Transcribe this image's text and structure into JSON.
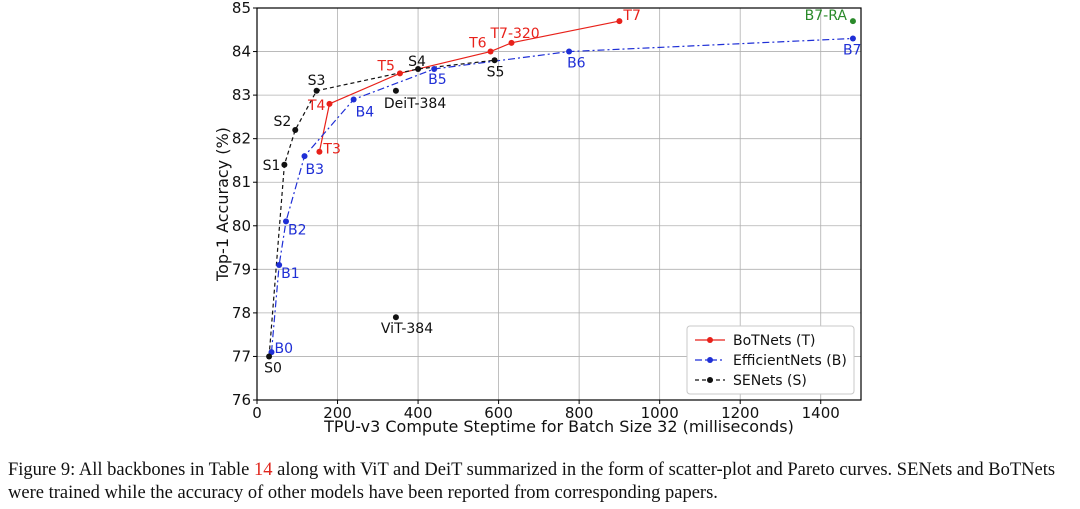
{
  "chart_data": {
    "type": "scatter",
    "title": "",
    "xlabel": "TPU-v3 Compute Steptime for Batch Size 32 (milliseconds)",
    "ylabel": "Top-1 Accuracy (%)",
    "xlim": [
      0,
      1500
    ],
    "ylim": [
      76,
      85
    ],
    "xticks": [
      0,
      200,
      400,
      600,
      800,
      1000,
      1200,
      1400
    ],
    "yticks": [
      76,
      77,
      78,
      79,
      80,
      81,
      82,
      83,
      84,
      85
    ],
    "grid": true,
    "legend_position": "lower-right",
    "series": [
      {
        "name": "BoTNets (T)",
        "color": "#e8211a",
        "linestyle": "solid",
        "points": [
          {
            "label": "T3",
            "x": 155,
            "y": 81.7
          },
          {
            "label": "T4",
            "x": 180,
            "y": 82.8
          },
          {
            "label": "T5",
            "x": 355,
            "y": 83.5
          },
          {
            "label": "T6",
            "x": 580,
            "y": 84.0
          },
          {
            "label": "T7-320",
            "x": 632,
            "y": 84.2
          },
          {
            "label": "T7",
            "x": 900,
            "y": 84.7
          }
        ]
      },
      {
        "name": "EfficientNets (B)",
        "color": "#1f2fd6",
        "linestyle": "dashdot",
        "points": [
          {
            "label": "B0",
            "x": 36,
            "y": 77.1
          },
          {
            "label": "B1",
            "x": 55,
            "y": 79.1
          },
          {
            "label": "B2",
            "x": 72,
            "y": 80.1
          },
          {
            "label": "B3",
            "x": 118,
            "y": 81.6
          },
          {
            "label": "B4",
            "x": 240,
            "y": 82.9
          },
          {
            "label": "B5",
            "x": 440,
            "y": 83.6
          },
          {
            "label": "B6",
            "x": 775,
            "y": 84.0
          },
          {
            "label": "B7",
            "x": 1480,
            "y": 84.3
          }
        ]
      },
      {
        "name": "SENets (S)",
        "color": "#111111",
        "linestyle": "dashed",
        "points": [
          {
            "label": "S0",
            "x": 30,
            "y": 77.0
          },
          {
            "label": "S1",
            "x": 68,
            "y": 81.4
          },
          {
            "label": "S2",
            "x": 95,
            "y": 82.2
          },
          {
            "label": "S3",
            "x": 148,
            "y": 83.1
          },
          {
            "label": "S4",
            "x": 400,
            "y": 83.6
          },
          {
            "label": "S5",
            "x": 590,
            "y": 83.8
          }
        ]
      }
    ],
    "standalone_points": [
      {
        "label": "ViT-384",
        "x": 345,
        "y": 77.9,
        "color": "#111111"
      },
      {
        "label": "DeiT-384",
        "x": 345,
        "y": 83.1,
        "color": "#111111"
      },
      {
        "label": "B7-RA",
        "x": 1480,
        "y": 84.7,
        "color": "#2a8a2a"
      }
    ]
  },
  "caption": {
    "prefix": "Figure 9: All backbones in Table ",
    "table_ref": "14",
    "suffix": " along with ViT and DeiT summarized in the form of scatter-plot and Pareto curves. SENets and BoTNets were trained while the accuracy of other models have been reported from corresponding papers."
  }
}
